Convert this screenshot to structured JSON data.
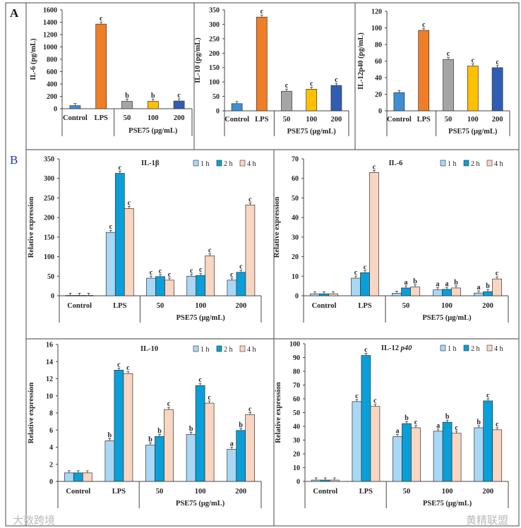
{
  "panel_labels": {
    "a": "A",
    "b": "B"
  },
  "watermarks": [
    "大数跨境",
    "黄精联盟"
  ],
  "colors": {
    "1 h": "#a8d8f5",
    "2 h": "#0a9fd8",
    "4 h": "#f9d6c2"
  },
  "chart_data": [
    {
      "type": "bar",
      "panel": "A",
      "ylabel": "IL-6 (pg/mL)",
      "ylim": [
        0,
        1600
      ],
      "ticks": [
        0,
        200,
        400,
        600,
        800,
        1000,
        1200,
        1400,
        1600
      ],
      "categories": [
        "Control",
        "LPS",
        "50",
        "100",
        "200"
      ],
      "group_label": "PSE75 (μg/mL)",
      "values": [
        50,
        1370,
        120,
        120,
        125
      ],
      "letters": [
        "",
        "c",
        "b",
        "b",
        "c"
      ],
      "bar_colors": [
        "#3d8fd1",
        "#f07e26",
        "#a5a5a5",
        "#ffc000",
        "#2e5db3"
      ]
    },
    {
      "type": "bar",
      "panel": "A",
      "ylabel": "IL-10 (pg/mL)",
      "ylim": [
        0,
        350
      ],
      "ticks": [
        0,
        50,
        100,
        150,
        200,
        250,
        300,
        350
      ],
      "categories": [
        "Control",
        "LPS",
        "50",
        "100",
        "200"
      ],
      "group_label": "PSE75 (μg/mL)",
      "values": [
        25,
        325,
        68,
        75,
        88
      ],
      "letters": [
        "",
        "c",
        "c",
        "c",
        "c"
      ],
      "bar_colors": [
        "#3d8fd1",
        "#f07e26",
        "#a5a5a5",
        "#ffc000",
        "#2e5db3"
      ]
    },
    {
      "type": "bar",
      "panel": "A",
      "ylabel": "IL-12p40 (pg/mL)",
      "ylim": [
        0,
        120
      ],
      "ticks": [
        0,
        20,
        40,
        60,
        80,
        100,
        120
      ],
      "categories": [
        "Control",
        "LPS",
        "50",
        "100",
        "200"
      ],
      "group_label": "PSE75 (μg/mL)",
      "values": [
        22,
        97,
        62,
        54,
        52
      ],
      "letters": [
        "",
        "c",
        "c",
        "c",
        "c"
      ],
      "bar_colors": [
        "#3d8fd1",
        "#f07e26",
        "#a5a5a5",
        "#ffc000",
        "#2e5db3"
      ]
    },
    {
      "type": "bar",
      "panel": "B",
      "title": "IL-1β",
      "ylabel": "Relative expression",
      "ylim": [
        0,
        350
      ],
      "ticks": [
        0,
        50,
        100,
        150,
        200,
        250,
        300,
        350
      ],
      "categories": [
        "Control",
        "LPS",
        "50",
        "100",
        "200"
      ],
      "group_label": "PSE75 (μg/mL)",
      "legend": "top-right",
      "series": [
        {
          "name": "1 h",
          "values": [
            1,
            162,
            45,
            50,
            40
          ],
          "letters": [
            "",
            "c",
            "c",
            "c",
            "c"
          ]
        },
        {
          "name": "2 h",
          "values": [
            1,
            313,
            49,
            52,
            60
          ],
          "letters": [
            "",
            "c",
            "c",
            "c",
            "c"
          ]
        },
        {
          "name": "4 h",
          "values": [
            1,
            223,
            40,
            102,
            232
          ],
          "letters": [
            "",
            "c",
            "c",
            "c",
            "c"
          ]
        }
      ]
    },
    {
      "type": "bar",
      "panel": "B",
      "title": "IL-6",
      "ylabel": "Relative expression",
      "ylim": [
        0,
        70
      ],
      "ticks": [
        0,
        10,
        20,
        30,
        40,
        50,
        60,
        70
      ],
      "categories": [
        "Control",
        "LPS",
        "50",
        "100",
        "200"
      ],
      "group_label": "PSE75 (μg/mL)",
      "legend": "top-right",
      "series": [
        {
          "name": "1 h",
          "values": [
            1,
            9,
            1.3,
            3,
            1.4
          ],
          "letters": [
            "",
            "c",
            "",
            "a",
            "a"
          ]
        },
        {
          "name": "2 h",
          "values": [
            1,
            11.8,
            4,
            3.3,
            2.1
          ],
          "letters": [
            "",
            "c",
            "a",
            "a",
            "b"
          ]
        },
        {
          "name": "4 h",
          "values": [
            1,
            63,
            4.5,
            4,
            8.6
          ],
          "letters": [
            "",
            "c",
            "b",
            "b",
            "c"
          ]
        }
      ]
    },
    {
      "type": "bar",
      "panel": "B",
      "title": "IL-10",
      "ylabel": "Relative expression",
      "ylim": [
        0,
        16
      ],
      "ticks": [
        0,
        2,
        4,
        6,
        8,
        10,
        12,
        14,
        16
      ],
      "categories": [
        "Control",
        "LPS",
        "50",
        "100",
        "200"
      ],
      "group_label": "PSE75 (μg/mL)",
      "legend": "top-right",
      "series": [
        {
          "name": "1 h",
          "values": [
            1,
            4.75,
            4.25,
            5.5,
            3.75
          ],
          "letters": [
            "",
            "b",
            "b",
            "b",
            "a"
          ]
        },
        {
          "name": "2 h",
          "values": [
            1,
            13,
            5.25,
            11.2,
            5.95
          ],
          "letters": [
            "",
            "c",
            "b",
            "c",
            "b"
          ]
        },
        {
          "name": "4 h",
          "values": [
            1,
            12.6,
            8.4,
            9.15,
            7.8
          ],
          "letters": [
            "",
            "c",
            "c",
            "c",
            "c"
          ]
        }
      ]
    },
    {
      "type": "bar",
      "panel": "B",
      "title": "IL-12 p40",
      "ylabel": "Relative expression",
      "ylim": [
        0,
        100
      ],
      "ticks": [
        0,
        10,
        20,
        30,
        40,
        50,
        60,
        70,
        80,
        90,
        100
      ],
      "categories": [
        "Control",
        "LPS",
        "50",
        "100",
        "200"
      ],
      "group_label": "PSE75 (μg/mL)",
      "legend": "top-right",
      "series": [
        {
          "name": "1 h",
          "values": [
            1,
            58,
            32.5,
            36.5,
            39
          ],
          "letters": [
            "",
            "c",
            "a",
            "a",
            "b"
          ]
        },
        {
          "name": "2 h",
          "values": [
            1,
            91.5,
            42,
            43,
            58.5
          ],
          "letters": [
            "",
            "c",
            "b",
            "b",
            "c"
          ]
        },
        {
          "name": "4 h",
          "values": [
            1,
            54.5,
            39,
            35,
            37.5
          ],
          "letters": [
            "",
            "c",
            "c",
            "c",
            "c"
          ]
        }
      ]
    }
  ]
}
